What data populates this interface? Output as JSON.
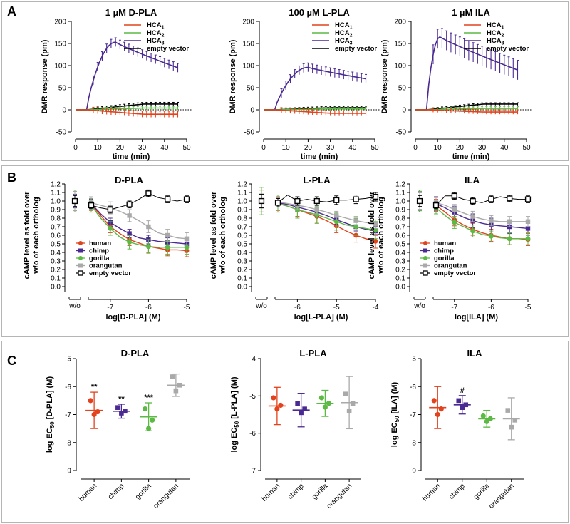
{
  "colors": {
    "human": "#e2421c",
    "chimp": "#4a2a92",
    "gorilla": "#5cb944",
    "orangutan": "#a9a9a9",
    "empty": "#000000",
    "hca1": "#e2421c",
    "hca2": "#5cb944",
    "hca3": "#4a2a92"
  },
  "panel_letters": [
    "A",
    "B",
    "C"
  ],
  "chart_data": [
    {
      "id": "A1",
      "type": "line",
      "title": "1 µM D-PLA",
      "xlabel": "time (min)",
      "ylabel": "DMR response (pm)",
      "xlim": [
        0,
        50
      ],
      "ylim": [
        -50,
        200
      ],
      "xticks": [
        0,
        10,
        20,
        30,
        40,
        50
      ],
      "yticks": [
        -50,
        0,
        50,
        100,
        150,
        200
      ],
      "legend": [
        "HCA1",
        "HCA2",
        "HCA3",
        "empty vector"
      ],
      "legend_base": [
        "HCA",
        "HCA",
        "HCA",
        "empty vector"
      ],
      "legend_sub": [
        "1",
        "2",
        "3",
        ""
      ],
      "series": [
        {
          "name": "HCA3",
          "key": "hca3",
          "peak_x": 18,
          "peak_y": 153,
          "end_y": 95,
          "err": 10
        },
        {
          "name": "empty vector",
          "key": "empty",
          "end_y": 13,
          "err": 4
        },
        {
          "name": "HCA2",
          "key": "hca2",
          "end_y": 4,
          "err": 4
        },
        {
          "name": "HCA1",
          "key": "hca1",
          "end_y": -10,
          "err": 7
        }
      ]
    },
    {
      "id": "A2",
      "type": "line",
      "title": "100 µM L-PLA",
      "xlabel": "time (min)",
      "ylabel": "DMR response (pm)",
      "xlim": [
        0,
        50
      ],
      "ylim": [
        -50,
        200
      ],
      "xticks": [
        0,
        10,
        20,
        30,
        40,
        50
      ],
      "yticks": [
        -50,
        0,
        50,
        100,
        150,
        200
      ],
      "legend": [
        "HCA1",
        "HCA2",
        "HCA3",
        "empty vector"
      ],
      "legend_base": [
        "HCA",
        "HCA",
        "HCA",
        "empty vector"
      ],
      "legend_sub": [
        "1",
        "2",
        "3",
        ""
      ],
      "series": [
        {
          "name": "HCA3",
          "key": "hca3",
          "peak_x": 20,
          "peak_y": 96,
          "end_y": 70,
          "err": 10
        },
        {
          "name": "empty vector",
          "key": "empty",
          "end_y": 5,
          "err": 3
        },
        {
          "name": "HCA2",
          "key": "hca2",
          "end_y": 2,
          "err": 3
        },
        {
          "name": "HCA1",
          "key": "hca1",
          "end_y": -8,
          "err": 6
        }
      ]
    },
    {
      "id": "A3",
      "type": "line",
      "title": "1 µM ILA",
      "xlabel": "time (min)",
      "ylabel": "DMR response (pm)",
      "xlim": [
        0,
        50
      ],
      "ylim": [
        -50,
        200
      ],
      "xticks": [
        0,
        10,
        20,
        30,
        40,
        50
      ],
      "yticks": [
        -50,
        0,
        50,
        100,
        150,
        200
      ],
      "legend": [
        "HCA1",
        "HCA2",
        "HCA3",
        "empty vector"
      ],
      "legend_base": [
        "HCA",
        "HCA",
        "HCA",
        "empty vector"
      ],
      "legend_sub": [
        "1",
        "2",
        "3",
        ""
      ],
      "series": [
        {
          "name": "HCA3",
          "key": "hca3",
          "peak_x": 11,
          "peak_y": 165,
          "end_y": 90,
          "err": 22
        },
        {
          "name": "empty vector",
          "key": "empty",
          "end_y": 13,
          "err": 3
        },
        {
          "name": "HCA2",
          "key": "hca2",
          "end_y": 3,
          "err": 4
        },
        {
          "name": "HCA1",
          "key": "hca1",
          "end_y": -5,
          "err": 5
        }
      ]
    },
    {
      "id": "B1",
      "type": "scatter",
      "title": "D-PLA",
      "xlabel": "log[D-PLA] (M)",
      "ylabel": [
        "cAMP level as fold over",
        "w/o of each ortholog"
      ],
      "xlim": [
        -7.5,
        -5
      ],
      "ylim": [
        0,
        1.2
      ],
      "xticks": [
        -7,
        -6,
        -5
      ],
      "yticks": [
        0.0,
        0.1,
        0.2,
        0.3,
        0.4,
        0.5,
        0.6,
        0.7,
        0.8,
        0.9,
        1.0,
        1.1,
        1.2
      ],
      "wo_label": "w/o",
      "legend": [
        "human",
        "chimp",
        "gorilla",
        "orangutan",
        "empty vector"
      ],
      "series": [
        {
          "name": "human",
          "key": "human",
          "x": [
            -7.5,
            -7.25,
            -7,
            -6.75,
            -6.5,
            -6.25,
            -6,
            -5.75,
            -5.5,
            -5.25,
            -5
          ],
          "y": [
            0.96,
            0.83,
            0.7,
            0.62,
            0.55,
            0.51,
            0.47,
            0.45,
            0.43,
            0.43,
            0.42
          ],
          "err": 0.07,
          "wo": 1.0
        },
        {
          "name": "chimp",
          "key": "chimp",
          "x": [
            -7.5,
            -7.25,
            -7,
            -6.75,
            -6.5,
            -6.25,
            -6,
            -5.75,
            -5.5,
            -5.25,
            -5
          ],
          "y": [
            0.97,
            0.85,
            0.75,
            0.68,
            0.62,
            0.57,
            0.55,
            0.53,
            0.52,
            0.51,
            0.5
          ],
          "err": 0.05,
          "wo": 1.0
        },
        {
          "name": "gorilla",
          "key": "gorilla",
          "x": [
            -7.5,
            -7.25,
            -7,
            -6.75,
            -6.5,
            -6.25,
            -6,
            -5.75,
            -5.5,
            -5.25,
            -5
          ],
          "y": [
            0.95,
            0.8,
            0.68,
            0.58,
            0.52,
            0.49,
            0.47,
            0.46,
            0.46,
            0.46,
            0.46
          ],
          "err": 0.08,
          "wo": 1.0
        },
        {
          "name": "orangutan",
          "key": "orangutan",
          "x": [
            -7.5,
            -7.25,
            -7,
            -6.75,
            -6.5,
            -6.25,
            -6,
            -5.75,
            -5.5,
            -5.25,
            -5
          ],
          "y": [
            0.98,
            0.95,
            0.92,
            0.88,
            0.83,
            0.77,
            0.7,
            0.63,
            0.6,
            0.57,
            0.56
          ],
          "err": 0.07,
          "wo": 1.0
        },
        {
          "name": "empty vector",
          "key": "empty",
          "x": [
            -7.5,
            -7.25,
            -7,
            -6.75,
            -6.5,
            -6.25,
            -6,
            -5.75,
            -5.5,
            -5.25,
            -5
          ],
          "y": [
            0.95,
            0.92,
            0.9,
            0.93,
            0.96,
            1.02,
            1.09,
            1.04,
            1.02,
            1.0,
            1.02
          ],
          "err": 0.04,
          "wo": 1.0
        }
      ]
    },
    {
      "id": "B2",
      "type": "scatter",
      "title": "L-PLA",
      "xlabel": "log[L-PLA] (M)",
      "ylabel": [
        "cAMP level as fold over",
        "w/o of each ortholog"
      ],
      "xlim": [
        -6.5,
        -4
      ],
      "ylim": [
        0,
        1.2
      ],
      "xticks": [
        -6,
        -5,
        -4
      ],
      "yticks": [
        0.0,
        0.1,
        0.2,
        0.3,
        0.4,
        0.5,
        0.6,
        0.7,
        0.8,
        0.9,
        1.0,
        1.1,
        1.2
      ],
      "wo_label": "w/o",
      "legend": [],
      "series": [
        {
          "name": "human",
          "key": "human",
          "x": [
            -6.5,
            -6.25,
            -6,
            -5.75,
            -5.5,
            -5.25,
            -5,
            -4.75,
            -4.5,
            -4.25,
            -4
          ],
          "y": [
            0.97,
            0.94,
            0.9,
            0.86,
            0.82,
            0.77,
            0.71,
            0.65,
            0.6,
            0.56,
            0.53
          ],
          "err": 0.08,
          "wo": 1.0
        },
        {
          "name": "chimp",
          "key": "chimp",
          "x": [
            -6.5,
            -6.25,
            -6,
            -5.75,
            -5.5,
            -5.25,
            -5,
            -4.75,
            -4.5,
            -4.25,
            -4
          ],
          "y": [
            0.98,
            0.96,
            0.93,
            0.9,
            0.87,
            0.83,
            0.78,
            0.74,
            0.7,
            0.67,
            0.65
          ],
          "err": 0.05,
          "wo": 1.0
        },
        {
          "name": "gorilla",
          "key": "gorilla",
          "x": [
            -6.5,
            -6.25,
            -6,
            -5.75,
            -5.5,
            -5.25,
            -5,
            -4.75,
            -4.5,
            -4.25,
            -4
          ],
          "y": [
            0.97,
            0.94,
            0.9,
            0.87,
            0.84,
            0.8,
            0.76,
            0.72,
            0.7,
            0.68,
            0.66
          ],
          "err": 0.1,
          "wo": 1.0
        },
        {
          "name": "orangutan",
          "key": "orangutan",
          "x": [
            -6.5,
            -6.25,
            -6,
            -5.75,
            -5.5,
            -5.25,
            -5,
            -4.75,
            -4.5,
            -4.25,
            -4
          ],
          "y": [
            0.99,
            0.97,
            0.95,
            0.93,
            0.9,
            0.87,
            0.83,
            0.8,
            0.77,
            0.75,
            0.73
          ],
          "err": 0.05,
          "wo": 1.0
        },
        {
          "name": "empty vector",
          "key": "empty",
          "x": [
            -6.5,
            -6.25,
            -6,
            -5.75,
            -5.5,
            -5.25,
            -5,
            -4.75,
            -4.5,
            -4.25,
            -4
          ],
          "y": [
            0.98,
            1.07,
            1.0,
            1.02,
            1.0,
            0.99,
            1.01,
            1.01,
            1.02,
            1.03,
            1.05
          ],
          "err": 0.05,
          "wo": 1.0
        }
      ]
    },
    {
      "id": "B3",
      "type": "scatter",
      "title": "ILA",
      "xlabel": "log[ILA] (M)",
      "ylabel": [
        "cAMP level as fold over",
        "w/o of each ortholog"
      ],
      "xlim": [
        -7.5,
        -5
      ],
      "ylim": [
        0,
        1.2
      ],
      "xticks": [
        -7,
        -6,
        -5
      ],
      "yticks": [
        0.0,
        0.1,
        0.2,
        0.3,
        0.4,
        0.5,
        0.6,
        0.7,
        0.8,
        0.9,
        1.0,
        1.1,
        1.2
      ],
      "wo_label": "w/o",
      "legend": [
        "human",
        "chimp",
        "gorilla",
        "orangutan",
        "empty vector"
      ],
      "series": [
        {
          "name": "human",
          "key": "human",
          "x": [
            -7.5,
            -7.25,
            -7,
            -6.75,
            -6.5,
            -6.25,
            -6,
            -5.75,
            -5.5,
            -5.25,
            -5
          ],
          "y": [
            0.95,
            0.87,
            0.78,
            0.72,
            0.67,
            0.63,
            0.6,
            0.58,
            0.56,
            0.56,
            0.55
          ],
          "err": 0.07,
          "wo": 1.0
        },
        {
          "name": "chimp",
          "key": "chimp",
          "x": [
            -7.5,
            -7.25,
            -7,
            -6.75,
            -6.5,
            -6.25,
            -6,
            -5.75,
            -5.5,
            -5.25,
            -5
          ],
          "y": [
            0.97,
            0.92,
            0.86,
            0.81,
            0.77,
            0.74,
            0.72,
            0.71,
            0.7,
            0.69,
            0.68
          ],
          "err": 0.08,
          "wo": 1.0
        },
        {
          "name": "gorilla",
          "key": "gorilla",
          "x": [
            -7.5,
            -7.25,
            -7,
            -6.75,
            -6.5,
            -6.25,
            -6,
            -5.75,
            -5.5,
            -5.25,
            -5
          ],
          "y": [
            0.92,
            0.83,
            0.75,
            0.7,
            0.65,
            0.61,
            0.59,
            0.57,
            0.56,
            0.56,
            0.56
          ],
          "err": 0.07,
          "wo": 1.0
        },
        {
          "name": "orangutan",
          "key": "orangutan",
          "x": [
            -7.5,
            -7.25,
            -7,
            -6.75,
            -6.5,
            -6.25,
            -6,
            -5.75,
            -5.5,
            -5.25,
            -5
          ],
          "y": [
            0.98,
            0.95,
            0.9,
            0.86,
            0.82,
            0.79,
            0.77,
            0.76,
            0.76,
            0.76,
            0.76
          ],
          "err": 0.06,
          "wo": 1.0
        },
        {
          "name": "empty vector",
          "key": "empty",
          "x": [
            -7.5,
            -7.25,
            -7,
            -6.75,
            -6.5,
            -6.25,
            -6,
            -5.75,
            -5.5,
            -5.25,
            -5
          ],
          "y": [
            0.95,
            1.06,
            1.06,
            1.02,
            1.0,
            0.98,
            1.02,
            1.05,
            1.03,
            1.02,
            1.02
          ],
          "err": 0.04,
          "wo": 1.0
        }
      ]
    },
    {
      "id": "C1",
      "type": "scatter",
      "title": "D-PLA",
      "ylabel_base": "log EC",
      "ylabel_sub": "50",
      "ylabel_tail": " [D-PLA] (M)",
      "ylim": [
        -9,
        -5
      ],
      "yticks": [
        -9,
        -8,
        -7,
        -6,
        -5
      ],
      "categories": [
        "human",
        "chimp",
        "gorilla",
        "orangutan"
      ],
      "series": [
        {
          "name": "human",
          "key": "human",
          "points": [
            -6.5,
            -6.9,
            -7.0
          ],
          "mean": -6.85,
          "sd": 0.65,
          "annot": "**"
        },
        {
          "name": "chimp",
          "key": "chimp",
          "points": [
            -6.75,
            -6.88,
            -6.95
          ],
          "mean": -6.88,
          "sd": 0.25,
          "annot": "**"
        },
        {
          "name": "gorilla",
          "key": "gorilla",
          "points": [
            -6.8,
            -7.2,
            -7.5
          ],
          "mean": -7.08,
          "sd": 0.5,
          "annot": "***"
        },
        {
          "name": "orangutan",
          "key": "orangutan",
          "points": [
            -5.65,
            -5.95,
            -6.15
          ],
          "mean": -5.95,
          "sd": 0.4,
          "annot": ""
        }
      ]
    },
    {
      "id": "C2",
      "type": "scatter",
      "title": "L-PLA",
      "ylabel_base": "log EC",
      "ylabel_sub": "50",
      "ylabel_tail": " [L-PLA] (M)",
      "ylim": [
        -7,
        -4
      ],
      "yticks": [
        -7,
        -6,
        -5,
        -4
      ],
      "categories": [
        "human",
        "chimp",
        "gorilla",
        "orangutan"
      ],
      "series": [
        {
          "name": "human",
          "key": "human",
          "points": [
            -5.05,
            -5.25,
            -5.35
          ],
          "mean": -5.27,
          "sd": 0.5,
          "annot": ""
        },
        {
          "name": "chimp",
          "key": "chimp",
          "points": [
            -5.2,
            -5.35,
            -5.45
          ],
          "mean": -5.38,
          "sd": 0.45,
          "annot": ""
        },
        {
          "name": "gorilla",
          "key": "gorilla",
          "points": [
            -5.05,
            -5.2,
            -5.3
          ],
          "mean": -5.2,
          "sd": 0.35,
          "annot": ""
        },
        {
          "name": "orangutan",
          "key": "orangutan",
          "points": [
            -4.95,
            -5.2,
            -5.4
          ],
          "mean": -5.18,
          "sd": 0.7,
          "annot": ""
        }
      ]
    },
    {
      "id": "C3",
      "type": "scatter",
      "title": "ILA",
      "ylabel_base": "log EC",
      "ylabel_sub": "50",
      "ylabel_tail": " [ILA] (M)",
      "ylim": [
        -9,
        -5
      ],
      "yticks": [
        -9,
        -8,
        -7,
        -6,
        -5
      ],
      "categories": [
        "human",
        "chimp",
        "gorilla",
        "orangutan"
      ],
      "series": [
        {
          "name": "human",
          "key": "human",
          "points": [
            -6.5,
            -6.8,
            -7.0
          ],
          "mean": -6.75,
          "sd": 0.75,
          "annot": ""
        },
        {
          "name": "chimp",
          "key": "chimp",
          "points": [
            -6.5,
            -6.65,
            -6.75
          ],
          "mean": -6.65,
          "sd": 0.33,
          "annot": "#"
        },
        {
          "name": "gorilla",
          "key": "gorilla",
          "points": [
            -7.05,
            -7.15,
            -7.25
          ],
          "mean": -7.15,
          "sd": 0.3,
          "annot": ""
        },
        {
          "name": "orangutan",
          "key": "orangutan",
          "points": [
            -6.85,
            -7.2,
            -7.45
          ],
          "mean": -7.15,
          "sd": 0.75,
          "annot": ""
        }
      ]
    }
  ]
}
